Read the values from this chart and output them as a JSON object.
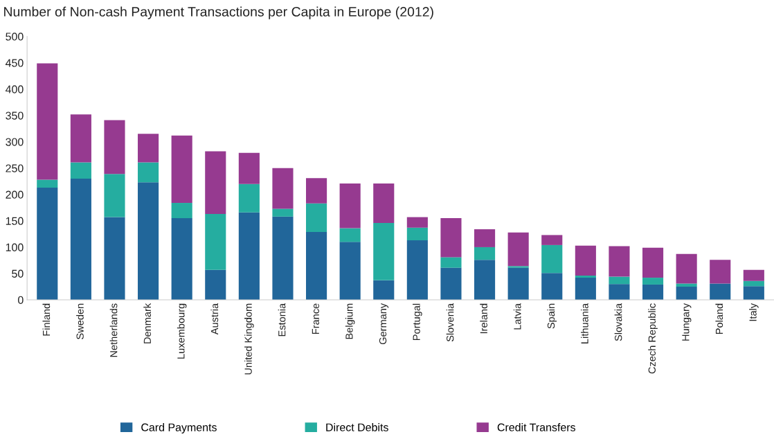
{
  "chart_data": {
    "type": "bar",
    "stacked": true,
    "title": "Number of Non-cash Payment Transactions per Capita in Europe (2012)",
    "categories": [
      "Finland",
      "Sweden",
      "Netherlands",
      "Denmark",
      "Luxembourg",
      "Austria",
      "United Kingdom",
      "Estonia",
      "France",
      "Belgium",
      "Germany",
      "Portugal",
      "Slovenia",
      "Ireland",
      "Latvia",
      "Spain",
      "Lithuania",
      "Slovakia",
      "Czech Republic",
      "Hungary",
      "Poland",
      "Italy"
    ],
    "series": [
      {
        "name": "Card Payments",
        "color": "#21669a",
        "values": [
          213,
          230,
          157,
          223,
          155,
          57,
          166,
          158,
          129,
          110,
          37,
          113,
          61,
          76,
          61,
          51,
          42,
          30,
          29,
          25,
          31,
          26
        ]
      },
      {
        "name": "Direct Debits",
        "color": "#25ada0",
        "values": [
          15,
          31,
          82,
          38,
          29,
          106,
          54,
          15,
          54,
          26,
          109,
          24,
          20,
          24,
          3,
          53,
          4,
          14,
          13,
          6,
          0,
          10
        ]
      },
      {
        "name": "Credit Transfers",
        "color": "#963a90",
        "values": [
          221,
          91,
          102,
          54,
          128,
          119,
          59,
          77,
          48,
          85,
          75,
          20,
          74,
          34,
          64,
          19,
          57,
          58,
          57,
          56,
          45,
          21
        ]
      }
    ],
    "ylim": [
      0,
      500
    ],
    "yticks": [
      0,
      50,
      100,
      150,
      200,
      250,
      300,
      350,
      400,
      450,
      500
    ],
    "grid": false,
    "legend": "bottom"
  }
}
